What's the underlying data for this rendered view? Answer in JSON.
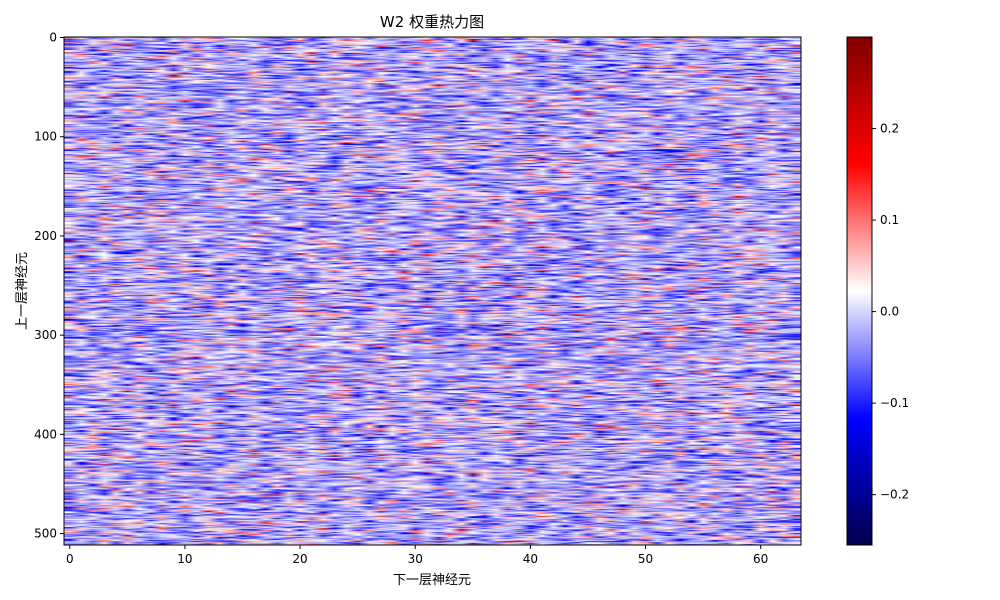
{
  "chart_data": {
    "type": "heatmap",
    "title": "W2 权重热力图",
    "xlabel": "下一层神经元",
    "ylabel": "上一层神经元",
    "columns": 64,
    "rows": 512,
    "xlim": [
      -0.5,
      63.5
    ],
    "ylim": [
      511.5,
      -0.5
    ],
    "x_ticks": [
      0,
      10,
      20,
      30,
      40,
      50,
      60
    ],
    "y_ticks": [
      0,
      100,
      200,
      300,
      400,
      500
    ],
    "colormap": "seismic",
    "colorbar": {
      "vmin": -0.255,
      "vmax": 0.3,
      "ticks": [
        -0.2,
        -0.1,
        0.0,
        0.1,
        0.2
      ],
      "tick_labels": [
        "−0.2",
        "−0.1",
        "0.0",
        "0.1",
        "0.2"
      ],
      "stops": [
        "#00004c",
        "#0000ff",
        "#ffffff",
        "#ff0000",
        "#800000"
      ]
    },
    "value_distribution": {
      "mean": -0.04,
      "std": 0.065
    },
    "grid": false,
    "legend": "none"
  }
}
